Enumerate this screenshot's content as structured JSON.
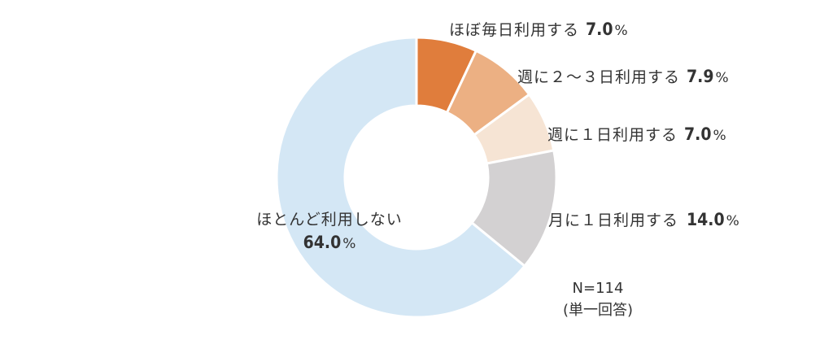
{
  "chart_data": {
    "type": "pie",
    "variant": "donut",
    "slices": [
      {
        "label": "ほぼ毎日利用する",
        "value": 7.0,
        "value_text": "7.0",
        "unit": "%",
        "color": "#e07d3c"
      },
      {
        "label": "週に２〜３日利用する",
        "value": 7.9,
        "value_text": "7.9",
        "unit": "%",
        "color": "#ecb083"
      },
      {
        "label": "週に１日利用する",
        "value": 7.0,
        "value_text": "7.0",
        "unit": "%",
        "color": "#f6e4d4"
      },
      {
        "label": "月に１日利用する",
        "value": 14.0,
        "value_text": "14.0",
        "unit": "%",
        "color": "#d3d1d2"
      },
      {
        "label": "ほとんど利用しない",
        "value": 64.0,
        "value_text": "64.0",
        "unit": "%",
        "color": "#d4e7f5"
      }
    ],
    "sample_note": "N=114",
    "answer_note": "(単一回答)",
    "legend": "none"
  }
}
